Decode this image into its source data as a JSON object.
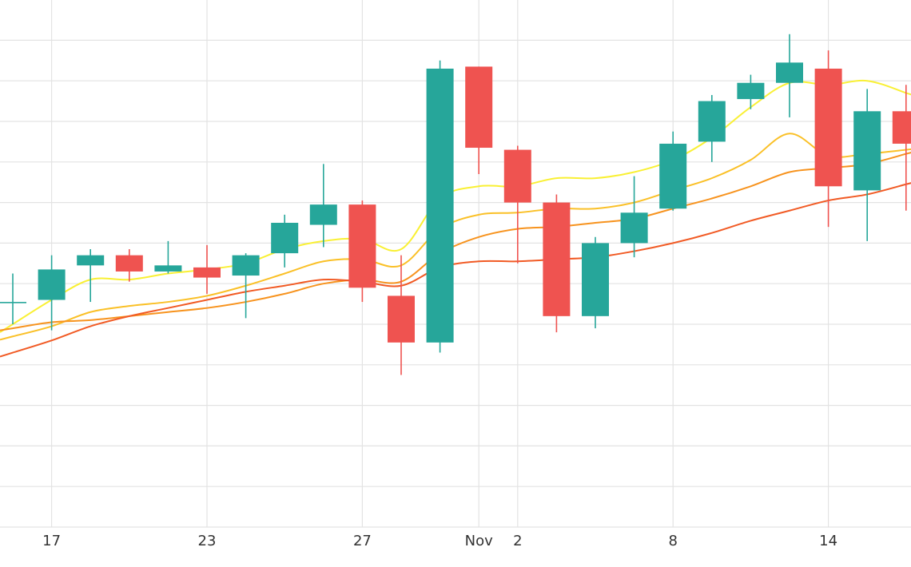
{
  "chart_data": {
    "type": "candlestick",
    "grid": true,
    "x_ticks": [
      {
        "index": 1,
        "label": "17"
      },
      {
        "index": 5,
        "label": "23"
      },
      {
        "index": 9,
        "label": "27"
      },
      {
        "index": 12,
        "label": "Nov"
      },
      {
        "index": 13,
        "label": "2"
      },
      {
        "index": 17,
        "label": "8"
      },
      {
        "index": 21,
        "label": "14"
      }
    ],
    "y_range": [
      0,
      13
    ],
    "y_gridlines": [
      0,
      1,
      2,
      3,
      4,
      5,
      6,
      7,
      8,
      9,
      10,
      11,
      12,
      13
    ],
    "candles": [
      {
        "index": 0,
        "open": 5.55,
        "high": 6.25,
        "low": 5.0,
        "close": 5.55
      },
      {
        "index": 1,
        "open": 5.6,
        "high": 6.7,
        "low": 4.85,
        "close": 6.35
      },
      {
        "index": 2,
        "open": 6.45,
        "high": 6.85,
        "low": 5.55,
        "close": 6.7
      },
      {
        "index": 3,
        "open": 6.7,
        "high": 6.85,
        "low": 6.05,
        "close": 6.3
      },
      {
        "index": 4,
        "open": 6.3,
        "high": 7.05,
        "low": 6.25,
        "close": 6.45
      },
      {
        "index": 5,
        "open": 6.4,
        "high": 6.95,
        "low": 5.75,
        "close": 6.15
      },
      {
        "index": 6,
        "open": 6.2,
        "high": 6.75,
        "low": 5.15,
        "close": 6.7
      },
      {
        "index": 7,
        "open": 6.75,
        "high": 7.7,
        "low": 6.4,
        "close": 7.5
      },
      {
        "index": 8,
        "open": 7.45,
        "high": 8.95,
        "low": 6.9,
        "close": 7.95
      },
      {
        "index": 9,
        "open": 7.95,
        "high": 8.05,
        "low": 5.55,
        "close": 5.9
      },
      {
        "index": 10,
        "open": 5.7,
        "high": 6.7,
        "low": 3.75,
        "close": 4.55
      },
      {
        "index": 11,
        "open": 4.55,
        "high": 11.5,
        "low": 4.3,
        "close": 11.3
      },
      {
        "index": 12,
        "open": 11.35,
        "high": 11.35,
        "low": 8.7,
        "close": 9.35
      },
      {
        "index": 13,
        "open": 9.3,
        "high": 9.4,
        "low": 6.5,
        "close": 8.0
      },
      {
        "index": 14,
        "open": 8.0,
        "high": 8.2,
        "low": 4.8,
        "close": 5.2
      },
      {
        "index": 15,
        "open": 5.2,
        "high": 7.15,
        "low": 4.9,
        "close": 7.0
      },
      {
        "index": 16,
        "open": 7.0,
        "high": 8.65,
        "low": 6.65,
        "close": 7.75
      },
      {
        "index": 17,
        "open": 7.85,
        "high": 9.75,
        "low": 7.8,
        "close": 9.45
      },
      {
        "index": 18,
        "open": 9.5,
        "high": 10.65,
        "low": 9.0,
        "close": 10.5
      },
      {
        "index": 19,
        "open": 10.55,
        "high": 11.15,
        "low": 10.3,
        "close": 10.95
      },
      {
        "index": 20,
        "open": 10.95,
        "high": 12.15,
        "low": 10.1,
        "close": 11.45
      },
      {
        "index": 21,
        "open": 11.3,
        "high": 11.75,
        "low": 7.4,
        "close": 8.4
      },
      {
        "index": 22,
        "open": 8.3,
        "high": 10.8,
        "low": 7.05,
        "close": 10.25
      },
      {
        "index": 23,
        "open": 10.25,
        "high": 10.9,
        "low": 7.8,
        "close": 9.45
      }
    ],
    "moving_averages": [
      {
        "color": "#F9F034",
        "values": [
          5.0,
          5.6,
          6.1,
          6.1,
          6.25,
          6.35,
          6.5,
          6.85,
          7.05,
          7.1,
          6.85,
          8.1,
          8.4,
          8.4,
          8.6,
          8.6,
          8.75,
          9.05,
          9.6,
          10.35,
          10.95,
          10.9,
          11.0,
          10.7
        ]
      },
      {
        "color": "#FAC027",
        "values": [
          4.7,
          4.95,
          5.3,
          5.45,
          5.55,
          5.7,
          5.95,
          6.25,
          6.55,
          6.6,
          6.45,
          7.35,
          7.7,
          7.75,
          7.85,
          7.85,
          8.0,
          8.3,
          8.6,
          9.05,
          9.7,
          9.15,
          9.2,
          9.3
        ]
      },
      {
        "color": "#F7931E",
        "values": [
          4.9,
          5.05,
          5.1,
          5.2,
          5.3,
          5.4,
          5.55,
          5.75,
          6.0,
          6.1,
          6.05,
          6.75,
          7.15,
          7.35,
          7.4,
          7.5,
          7.6,
          7.85,
          8.1,
          8.4,
          8.75,
          8.85,
          8.95,
          9.2
        ]
      },
      {
        "color": "#F15A24",
        "values": [
          4.3,
          4.6,
          4.95,
          5.2,
          5.4,
          5.6,
          5.8,
          5.95,
          6.1,
          6.05,
          5.95,
          6.4,
          6.55,
          6.55,
          6.6,
          6.65,
          6.8,
          7.0,
          7.25,
          7.55,
          7.8,
          8.05,
          8.2,
          8.45
        ]
      }
    ],
    "colors": {
      "up": "#26A69A",
      "down": "#EF5350",
      "grid": "#E3E3E3"
    }
  }
}
